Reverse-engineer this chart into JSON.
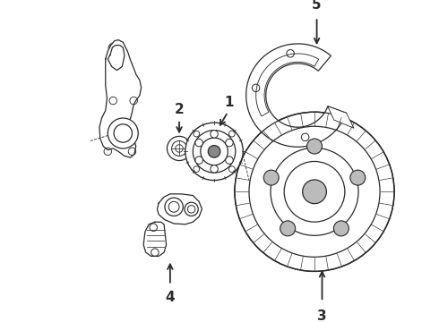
{
  "bg_color": "#ffffff",
  "line_color": "#2a2a2a",
  "lw": 0.9,
  "figsize": [
    4.9,
    3.6
  ],
  "dpi": 100,
  "xlim": [
    0,
    490
  ],
  "ylim": [
    0,
    360
  ]
}
